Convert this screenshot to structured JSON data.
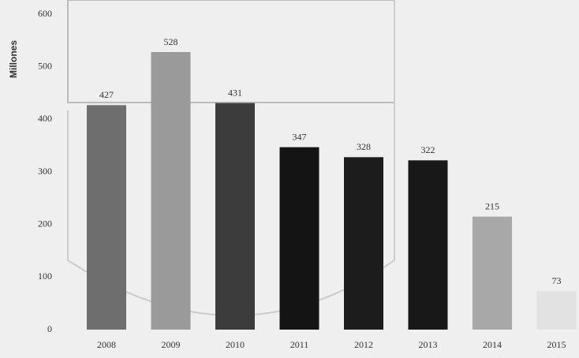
{
  "chart_data": {
    "type": "bar",
    "y_label": "Millones",
    "categories": [
      "2008",
      "2009",
      "2010",
      "2011",
      "2012",
      "2013",
      "2014",
      "2015"
    ],
    "values": [
      427,
      528,
      431,
      347,
      328,
      322,
      215,
      73
    ],
    "colors": [
      "#6e6e6e",
      "#9a9a9a",
      "#3c3c3c",
      "#141414",
      "#1c1c1c",
      "#181818",
      "#a8a8a8",
      "#e2e2e2"
    ],
    "ylim": [
      0,
      600
    ],
    "yticks": [
      0,
      100,
      200,
      300,
      400,
      500,
      600
    ],
    "grid": false
  }
}
